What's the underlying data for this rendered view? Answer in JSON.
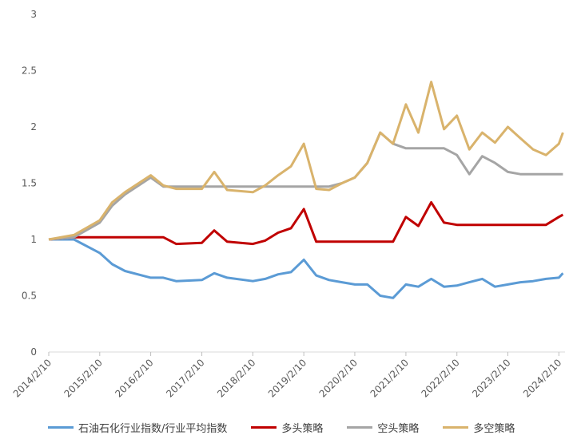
{
  "chart_data": {
    "type": "line",
    "title": "",
    "xlabel": "",
    "ylabel": "",
    "ylim": [
      0,
      3
    ],
    "y_ticks": [
      "0",
      "0.5",
      "1",
      "1.5",
      "2",
      "2.5",
      "3"
    ],
    "x_ticks": [
      "2014/2/10",
      "2015/2/10",
      "2016/2/10",
      "2017/2/10",
      "2018/2/10",
      "2019/2/10",
      "2020/2/10",
      "2021/2/10",
      "2022/2/10",
      "2023/2/10",
      "2024/2/10"
    ],
    "grid": false,
    "legend_position": "bottom",
    "x": [
      "2014/2/10",
      "2014/8/10",
      "2015/2/10",
      "2015/5/10",
      "2015/8/10",
      "2016/2/10",
      "2016/5/10",
      "2016/8/10",
      "2017/2/10",
      "2017/5/10",
      "2017/8/10",
      "2018/2/10",
      "2018/5/10",
      "2018/8/10",
      "2018/11/10",
      "2019/2/10",
      "2019/5/10",
      "2019/8/10",
      "2019/11/10",
      "2020/2/10",
      "2020/5/10",
      "2020/8/10",
      "2020/11/10",
      "2021/2/10",
      "2021/5/10",
      "2021/8/10",
      "2021/11/10",
      "2022/2/10",
      "2022/5/10",
      "2022/8/10",
      "2022/11/10",
      "2023/2/10",
      "2023/5/10",
      "2023/8/10",
      "2023/11/10",
      "2024/2/10",
      "2024/3/10"
    ],
    "series": [
      {
        "name": "石油石化行业指数/行业平均指数",
        "color": "#5b9bd5",
        "values": [
          1.0,
          1.0,
          0.88,
          0.78,
          0.72,
          0.66,
          0.66,
          0.63,
          0.64,
          0.7,
          0.66,
          0.63,
          0.65,
          0.69,
          0.71,
          0.82,
          0.68,
          0.64,
          0.62,
          0.6,
          0.6,
          0.5,
          0.48,
          0.6,
          0.58,
          0.65,
          0.58,
          0.59,
          0.62,
          0.65,
          0.58,
          0.6,
          0.62,
          0.63,
          0.65,
          0.66,
          0.7
        ]
      },
      {
        "name": "多头策略",
        "color": "#c00000",
        "values": [
          1.0,
          1.02,
          1.02,
          1.02,
          1.02,
          1.02,
          1.02,
          0.96,
          0.97,
          1.08,
          0.98,
          0.96,
          0.99,
          1.06,
          1.1,
          1.27,
          0.98,
          0.98,
          0.98,
          0.98,
          0.98,
          0.98,
          0.98,
          1.2,
          1.12,
          1.33,
          1.15,
          1.13,
          1.13,
          1.13,
          1.13,
          1.13,
          1.13,
          1.13,
          1.13,
          1.2,
          1.22
        ]
      },
      {
        "name": "空头策略",
        "color": "#a5a5a5",
        "values": [
          1.0,
          1.02,
          1.15,
          1.3,
          1.4,
          1.55,
          1.47,
          1.47,
          1.47,
          1.47,
          1.47,
          1.47,
          1.47,
          1.47,
          1.47,
          1.47,
          1.47,
          1.47,
          1.5,
          1.55,
          1.68,
          1.95,
          1.85,
          1.81,
          1.81,
          1.81,
          1.81,
          1.75,
          1.58,
          1.74,
          1.68,
          1.6,
          1.58,
          1.58,
          1.58,
          1.58,
          1.58
        ]
      },
      {
        "name": "多空策略",
        "color": "#d9b36c",
        "values": [
          1.0,
          1.04,
          1.17,
          1.33,
          1.42,
          1.57,
          1.48,
          1.45,
          1.45,
          1.6,
          1.44,
          1.42,
          1.48,
          1.57,
          1.65,
          1.85,
          1.45,
          1.44,
          1.5,
          1.55,
          1.68,
          1.95,
          1.85,
          2.2,
          1.95,
          2.4,
          1.98,
          2.1,
          1.8,
          1.95,
          1.86,
          2.0,
          1.9,
          1.8,
          1.75,
          1.85,
          1.95
        ]
      }
    ]
  }
}
